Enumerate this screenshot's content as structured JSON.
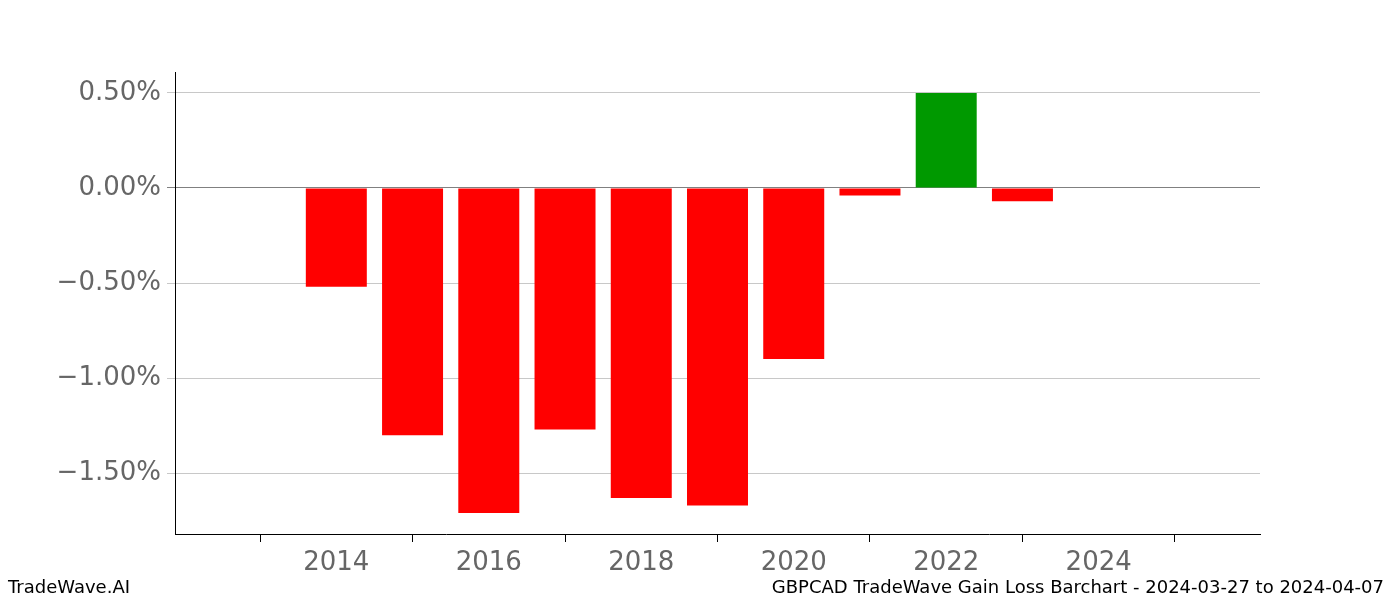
{
  "chart_data": {
    "type": "bar",
    "title": "GBPCAD TradeWave Gain Loss Barchart - 2024-03-27 to 2024-04-07",
    "source": "TradeWave.AI",
    "x": [
      2014,
      2015,
      2016,
      2017,
      2018,
      2019,
      2020,
      2021,
      2022,
      2023
    ],
    "values": [
      -0.52,
      -1.3,
      -1.71,
      -1.27,
      -1.63,
      -1.67,
      -0.9,
      -0.04,
      0.5,
      -0.07
    ],
    "colors": [
      "#ff0000",
      "#ff0000",
      "#ff0000",
      "#ff0000",
      "#ff0000",
      "#ff0000",
      "#ff0000",
      "#ff0000",
      "#009900",
      "#ff0000"
    ],
    "xlim": [
      2013.07,
      2024.93
    ],
    "xticks": [
      2014,
      2016,
      2018,
      2020,
      2022,
      2024
    ],
    "ylim": [
      -1.82,
      0.61
    ],
    "yticks": [
      {
        "value": -1.5,
        "label": "−1.50%"
      },
      {
        "value": -1.0,
        "label": "−1.00%"
      },
      {
        "value": -0.5,
        "label": "−0.50%"
      },
      {
        "value": 0,
        "label": "0.00%"
      },
      {
        "value": 0.5,
        "label": "0.50%"
      }
    ],
    "grid": true
  }
}
